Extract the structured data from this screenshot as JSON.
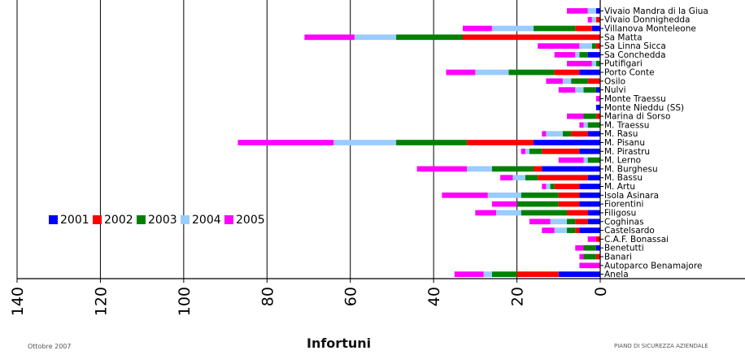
{
  "chart_data": {
    "type": "bar",
    "orientation": "horizontal",
    "stacked": true,
    "xlabel": "Infortuni",
    "xlim": [
      0,
      140
    ],
    "x_direction": "reversed",
    "xticks": [
      140,
      120,
      100,
      80,
      60,
      40,
      20,
      0
    ],
    "grid": "vertical",
    "legend_position": "middle-left",
    "categories": [
      "Vivaio Mandra di la Giua",
      "Vivaio Donnighedda",
      "Villanova Monteleone",
      "Sa Matta",
      "Sa Linna Sicca",
      "Sa Conchedda",
      "Putifigari",
      "Porto Conte",
      "Osilo",
      "Nulvi",
      "Monte Traessu",
      "Monte Nieddu (SS)",
      "Marina di Sorso",
      "M. Traessu",
      "M. Rasu",
      "M. Pisanu",
      "M. Pirastru",
      "M. Lerno",
      "M. Burghesu",
      "M. Bassu",
      "M. Artu",
      "Isola Asinara",
      "Fiorentini",
      "Filigosu",
      "Coghinas",
      "Castelsardo",
      "C.A.F. Bonassai",
      "Benetutti",
      "Banari",
      "Autoparco Benamajore",
      "Anela"
    ],
    "series": [
      {
        "name": "2001",
        "color": "#0000ff",
        "values": [
          1,
          0,
          2,
          0,
          0,
          3,
          0,
          5,
          0,
          1,
          0,
          1,
          0,
          0,
          3,
          16,
          5,
          0,
          14,
          3,
          5,
          5,
          5,
          3,
          3,
          5,
          0,
          1,
          0,
          0,
          10
        ]
      },
      {
        "name": "2002",
        "color": "#ff0000",
        "values": [
          0,
          1,
          4,
          33,
          1,
          0,
          0,
          6,
          3,
          0,
          0,
          0,
          1,
          0,
          4,
          16,
          9,
          0,
          2,
          12,
          6,
          5,
          5,
          5,
          3,
          1,
          1,
          0,
          1,
          0,
          10
        ]
      },
      {
        "name": "2003",
        "color": "#008000",
        "values": [
          0,
          0,
          10,
          16,
          1,
          2,
          1,
          11,
          4,
          3,
          0,
          0,
          3,
          3,
          2,
          17,
          3,
          3,
          10,
          3,
          1,
          9,
          10,
          11,
          2,
          2,
          0,
          3,
          3,
          0,
          6
        ]
      },
      {
        "name": "2004",
        "color": "#99ccff",
        "values": [
          2,
          1,
          10,
          10,
          3,
          1,
          1,
          8,
          2,
          2,
          0,
          0,
          0,
          1,
          4,
          15,
          1,
          1,
          6,
          3,
          1,
          8,
          0,
          6,
          4,
          3,
          0,
          0,
          0,
          0,
          2
        ]
      },
      {
        "name": "2005",
        "color": "#ff00ff",
        "values": [
          5,
          1,
          7,
          12,
          10,
          5,
          6,
          7,
          4,
          4,
          1,
          0,
          4,
          1,
          1,
          23,
          1,
          6,
          12,
          3,
          1,
          11,
          6,
          5,
          5,
          3,
          2,
          2,
          1,
          5,
          7
        ]
      }
    ]
  },
  "footer": {
    "left": "Ottobre 2007",
    "right": "PIANO DI SICUREZZA AZIENDALE"
  }
}
